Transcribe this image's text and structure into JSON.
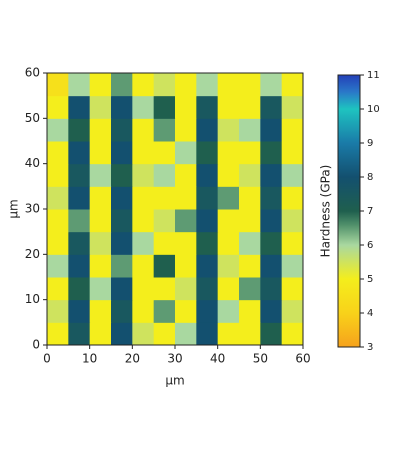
{
  "chart_data": {
    "type": "heatmap",
    "xlabel": "µm",
    "ylabel": "µm",
    "colorbar_label": "Hardness (GPa)",
    "xlim": [
      0,
      60
    ],
    "ylim": [
      0,
      60
    ],
    "xticks": [
      0,
      10,
      20,
      30,
      40,
      50,
      60
    ],
    "yticks": [
      0,
      10,
      20,
      30,
      40,
      50,
      60
    ],
    "x": [
      2.5,
      7.5,
      12.5,
      17.5,
      22.5,
      27.5,
      32.5,
      37.5,
      42.5,
      47.5,
      52.5,
      57.5
    ],
    "y": [
      2.5,
      7.5,
      12.5,
      17.5,
      22.5,
      27.5,
      32.5,
      37.5,
      42.5,
      47.5,
      52.5,
      57.5
    ],
    "z": [
      [
        5,
        7.5,
        5,
        8,
        5.5,
        5,
        6,
        8,
        5,
        5,
        7,
        5
      ],
      [
        5.5,
        8,
        5,
        7.5,
        5,
        6.5,
        5,
        8,
        6,
        5,
        8,
        5.5
      ],
      [
        5,
        7,
        6,
        8,
        5,
        5,
        5.5,
        7.5,
        5,
        6.5,
        7.5,
        5
      ],
      [
        6,
        8,
        5,
        6.5,
        5,
        7,
        5,
        8,
        5.5,
        5,
        8,
        6
      ],
      [
        5,
        7.5,
        5.5,
        8,
        6,
        5,
        5,
        7,
        5,
        6,
        7,
        5
      ],
      [
        5,
        6.5,
        5,
        7.5,
        5,
        5.5,
        6.5,
        8,
        5,
        5,
        8,
        5.5
      ],
      [
        5.5,
        8,
        5,
        8,
        5,
        5,
        5,
        7.5,
        6.5,
        5,
        7.5,
        5
      ],
      [
        5,
        7.5,
        6,
        7,
        5.5,
        6,
        5,
        8,
        5,
        5.5,
        8,
        6
      ],
      [
        5,
        8,
        5,
        8,
        5,
        5,
        6,
        7,
        5,
        5,
        7,
        5
      ],
      [
        6,
        7,
        5,
        7.5,
        5,
        6.5,
        5,
        8,
        5.5,
        6,
        8,
        5
      ],
      [
        5,
        8,
        5.5,
        8,
        6,
        7,
        5,
        7.5,
        5,
        5,
        7.5,
        5.5
      ],
      [
        4.5,
        6,
        5,
        6.5,
        5,
        5.5,
        5,
        6,
        5,
        5,
        6,
        5
      ]
    ],
    "zlim": [
      3,
      11
    ],
    "zticks": [
      3,
      4,
      5,
      6,
      7,
      8,
      9,
      10,
      11
    ],
    "colorscale": [
      [
        3,
        "#f6a21c"
      ],
      [
        4,
        "#f8d21a"
      ],
      [
        5,
        "#f4ee1c"
      ],
      [
        6,
        "#a9d8a0"
      ],
      [
        6.6,
        "#4f8f6a"
      ],
      [
        7,
        "#1f5f4e"
      ],
      [
        8,
        "#13506f"
      ],
      [
        9,
        "#1a7ba8"
      ],
      [
        10,
        "#1ec3c0"
      ],
      [
        10.5,
        "#2a78c8"
      ],
      [
        11,
        "#2340b8"
      ]
    ]
  }
}
